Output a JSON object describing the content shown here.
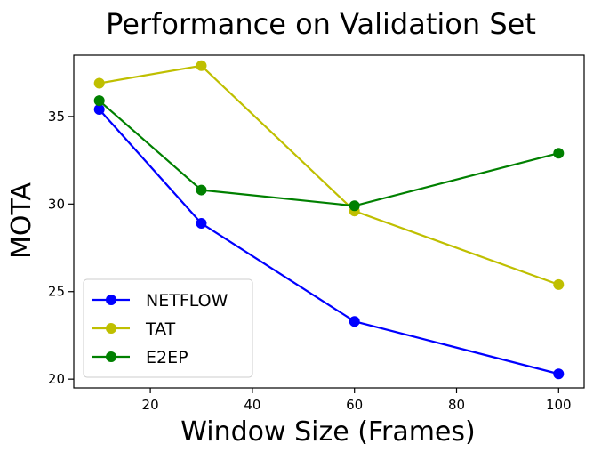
{
  "chart_data": {
    "type": "line",
    "title": "Performance on Validation Set",
    "xlabel": "Window Size (Frames)",
    "ylabel": "MOTA",
    "xlim": [
      5,
      105
    ],
    "ylim": [
      19.5,
      38.5
    ],
    "xticks": [
      20,
      40,
      60,
      80,
      100
    ],
    "yticks": [
      20,
      25,
      30,
      35
    ],
    "grid": false,
    "legend_position": "bottom-left",
    "x": [
      10,
      30,
      60,
      100
    ],
    "series": [
      {
        "name": "NETFLOW",
        "color": "#0000ff",
        "values": [
          35.4,
          28.9,
          23.3,
          20.3
        ]
      },
      {
        "name": "TAT",
        "color": "#bfbf00",
        "values": [
          36.9,
          37.9,
          29.6,
          25.4
        ]
      },
      {
        "name": "E2EP",
        "color": "#008000",
        "values": [
          35.9,
          30.8,
          29.9,
          32.9
        ]
      }
    ]
  }
}
